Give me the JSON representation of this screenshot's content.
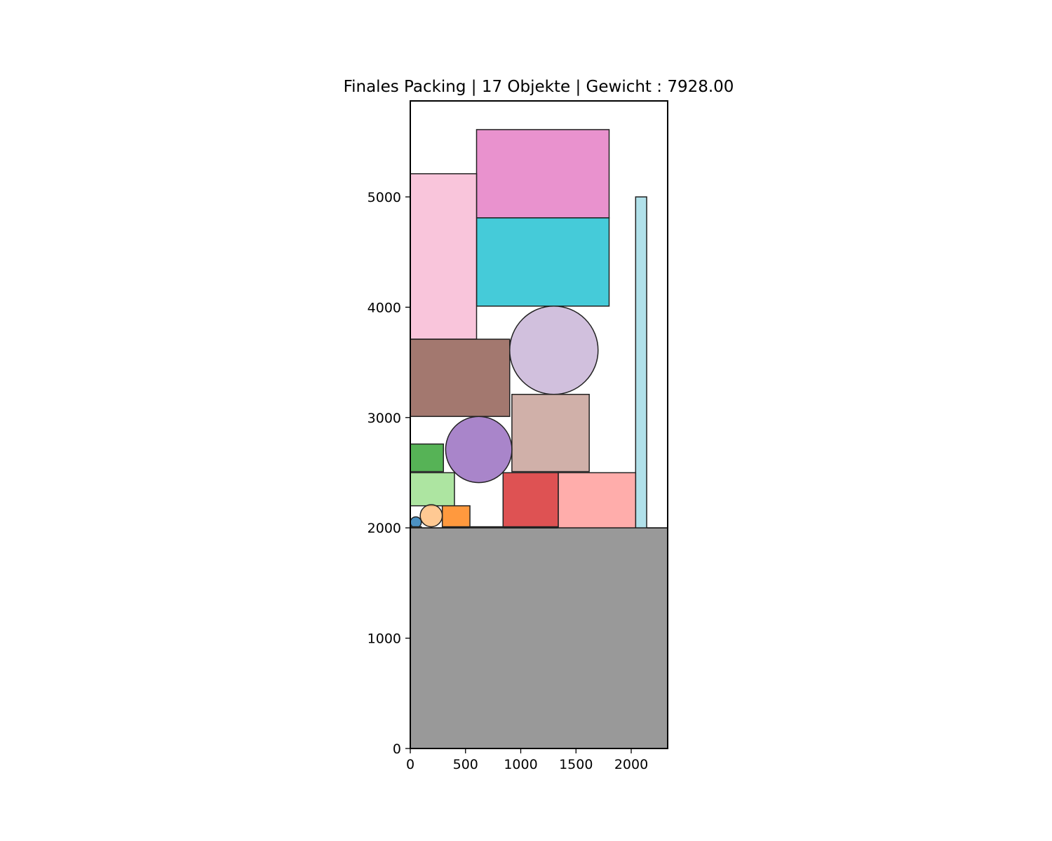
{
  "chart_data": {
    "type": "packing",
    "title": "Finales Packing | 17 Objekte | Gewicht : 7928.00",
    "xlabel": "",
    "ylabel": "",
    "xlim": [
      0,
      2330
    ],
    "ylim": [
      0,
      5870
    ],
    "grid": false,
    "x_ticks": [
      {
        "value": 0,
        "label": "0"
      },
      {
        "value": 500,
        "label": "500"
      },
      {
        "value": 1000,
        "label": "1000"
      },
      {
        "value": 1500,
        "label": "1500"
      },
      {
        "value": 2000,
        "label": "2000"
      }
    ],
    "y_ticks": [
      {
        "value": 0,
        "label": "0"
      },
      {
        "value": 1000,
        "label": "1000"
      },
      {
        "value": 2000,
        "label": "2000"
      },
      {
        "value": 3000,
        "label": "3000"
      },
      {
        "value": 4000,
        "label": "4000"
      },
      {
        "value": 5000,
        "label": "5000"
      }
    ],
    "base": {
      "x": 0,
      "y": 0,
      "width": 2330,
      "height": 2000,
      "color": "#999999"
    },
    "container": {
      "x": 0,
      "y": 0,
      "width": 2330,
      "height": 5870
    },
    "objects": [
      {
        "shape": "rect",
        "x": 600,
        "y": 4810,
        "width": 1200,
        "height": 800,
        "color": "#e377c2"
      },
      {
        "shape": "rect",
        "x": 600,
        "y": 4010,
        "width": 1200,
        "height": 800,
        "color": "#17becf"
      },
      {
        "shape": "rect",
        "x": 0,
        "y": 3710,
        "width": 600,
        "height": 1500,
        "color": "#f7b6d2"
      },
      {
        "shape": "rect",
        "x": 2040,
        "y": 2000,
        "width": 100,
        "height": 3000,
        "color": "#9edae5"
      },
      {
        "shape": "rect",
        "x": 0,
        "y": 3010,
        "width": 900,
        "height": 700,
        "color": "#8c564b"
      },
      {
        "shape": "circle",
        "cx": 1300,
        "cy": 3610,
        "r": 400,
        "color": "#c5b0d5"
      },
      {
        "shape": "rect",
        "x": 920,
        "y": 2510,
        "width": 700,
        "height": 700,
        "color": "#c49c94"
      },
      {
        "shape": "circle",
        "cx": 620,
        "cy": 2710,
        "r": 300,
        "color": "#9467bd"
      },
      {
        "shape": "rect",
        "x": 0,
        "y": 2510,
        "width": 300,
        "height": 250,
        "color": "#2ca02c"
      },
      {
        "shape": "rect",
        "x": 0,
        "y": 2200,
        "width": 400,
        "height": 300,
        "color": "#98df8a"
      },
      {
        "shape": "rect",
        "x": 840,
        "y": 2010,
        "width": 500,
        "height": 490,
        "color": "#d62728"
      },
      {
        "shape": "rect",
        "x": 1340,
        "y": 2000,
        "width": 700,
        "height": 500,
        "color": "#ff9896"
      },
      {
        "shape": "rect",
        "x": 290,
        "y": 2010,
        "width": 250,
        "height": 190,
        "color": "#ff7f0e"
      },
      {
        "shape": "circle",
        "cx": 190,
        "cy": 2110,
        "r": 100,
        "color": "#ffbb78"
      },
      {
        "shape": "circle",
        "cx": 50,
        "cy": 2050,
        "r": 50,
        "color": "#1f77b4"
      },
      {
        "shape": "rect",
        "x": 540,
        "y": 2000,
        "width": 300,
        "height": 10,
        "color": "#7f7f7f"
      },
      {
        "shape": "rect",
        "x": 0,
        "y": 2000,
        "width": 100,
        "height": 10,
        "color": "#bcbd22"
      }
    ]
  }
}
